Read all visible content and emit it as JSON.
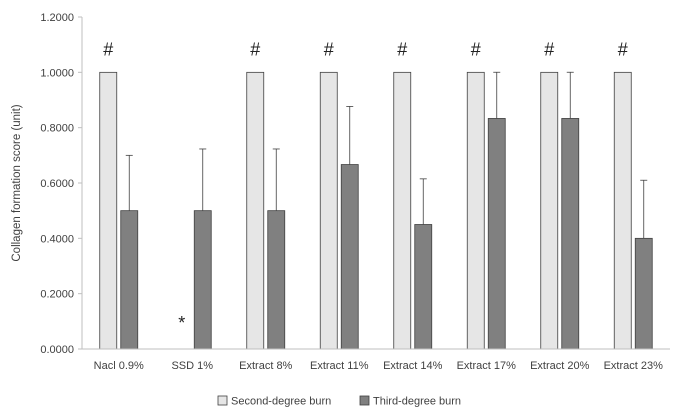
{
  "chart_data": {
    "type": "bar",
    "xlabel": "",
    "ylabel": "Collagen formation score (unit)",
    "ylim": [
      0,
      1.2
    ],
    "yticks": [
      0.0,
      0.2,
      0.4,
      0.6,
      0.8,
      1.0,
      1.2
    ],
    "ytick_labels": [
      "0.0000",
      "0.2000",
      "0.4000",
      "0.6000",
      "0.8000",
      "1.0000",
      "1.2000"
    ],
    "grid": false,
    "legend_position": "bottom",
    "categories": [
      "Nacl 0.9%",
      "SSD 1%",
      "Extract 8%",
      "Extract 11%",
      "Extract 14%",
      "Extract 17%",
      "Extract 20%",
      "Extract 23%"
    ],
    "series": [
      {
        "name": "Second-degree burn",
        "color": "#e6e6e6",
        "values": [
          1.0,
          0.0,
          1.0,
          1.0,
          1.0,
          1.0,
          1.0,
          1.0
        ],
        "error": [
          0,
          0,
          0,
          0,
          0,
          0,
          0,
          0
        ]
      },
      {
        "name": "Third-degree burn",
        "color": "#808080",
        "values": [
          0.5,
          0.5,
          0.5,
          0.6667,
          0.45,
          0.8333,
          0.8333,
          0.4
        ],
        "error": [
          0.2,
          0.223,
          0.223,
          0.21,
          0.165,
          0.167,
          0.167,
          0.21
        ]
      }
    ],
    "annotations": [
      "#",
      "*",
      "#",
      "#",
      "#",
      "#",
      "#",
      "#"
    ]
  }
}
